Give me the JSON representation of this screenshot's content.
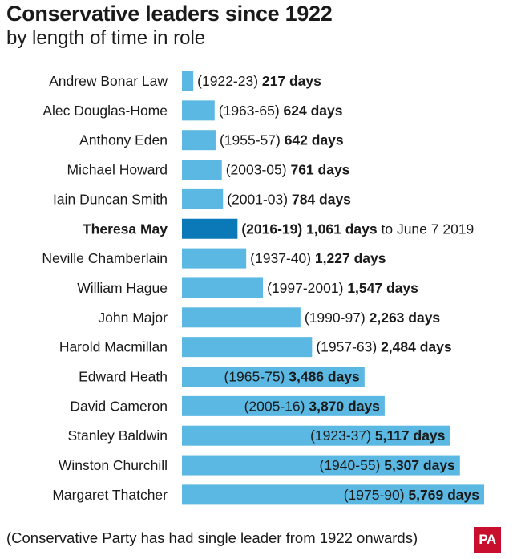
{
  "header": {
    "title": "Conservative leaders since 1922",
    "subtitle": "by length of time in role"
  },
  "footer": {
    "note": "(Conservative Party has had single leader from 1922 onwards)",
    "logo_text": "PA"
  },
  "colors": {
    "bar": "#5bb8e3",
    "highlight_bar": "#0b78b8"
  },
  "chart_data": {
    "type": "bar",
    "orientation": "horizontal",
    "title": "Conservative leaders since 1922",
    "subtitle": "by length of time in role",
    "xlabel": "",
    "ylabel": "",
    "xlim": [
      0,
      5769
    ],
    "grid": false,
    "categories": [
      "Andrew Bonar Law",
      "Alec Douglas-Home",
      "Anthony Eden",
      "Michael Howard",
      "Iain Duncan Smith",
      "Theresa May",
      "Neville Chamberlain",
      "William Hague",
      "John Major",
      "Harold Macmillan",
      "Edward Heath",
      "David Cameron",
      "Stanley Baldwin",
      "Winston Churchill",
      "Margaret Thatcher"
    ],
    "values": [
      217,
      624,
      642,
      761,
      784,
      1061,
      1227,
      1547,
      2263,
      2484,
      3486,
      3870,
      5117,
      5307,
      5769
    ],
    "periods": [
      "(1922-23)",
      "(1963-65)",
      "(1955-57)",
      "(2003-05)",
      "(2001-03)",
      "(2016-19)",
      "(1937-40)",
      "(1997-2001)",
      "(1990-97)",
      "(1957-63)",
      "(1965-75)",
      "(2005-16)",
      "(1923-37)",
      "(1940-55)",
      "(1975-90)"
    ],
    "value_labels": [
      "217 days",
      "624 days",
      "642 days",
      "761 days",
      "784 days",
      "1,061 days",
      "1,227 days",
      "1,547 days",
      "2,263 days",
      "2,484 days",
      "3,486 days",
      "3,870 days",
      "5,117 days",
      "5,307 days",
      "5,769 days"
    ],
    "highlight": "Theresa May",
    "annotations": {
      "Theresa May": "to June 7 2019"
    }
  }
}
